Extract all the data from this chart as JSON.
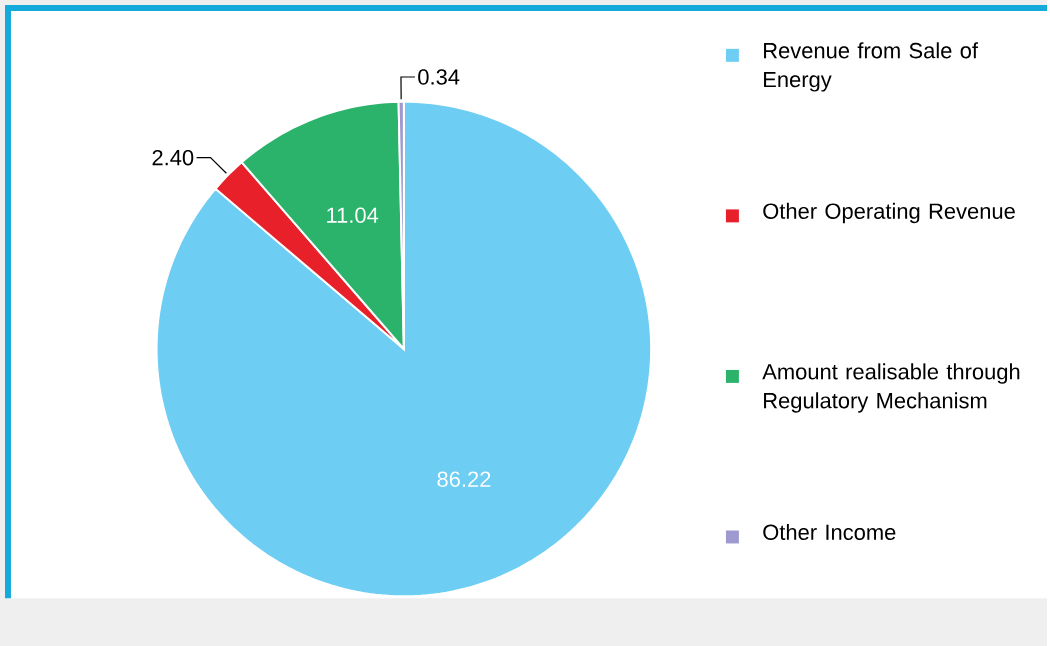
{
  "chart_data": {
    "type": "pie",
    "categories": [
      "Revenue from Sale of Energy",
      "Other Operating Revenue",
      "Amount realisable through Regulatory Mechanism",
      "Other Income"
    ],
    "values": [
      86.22,
      2.4,
      11.04,
      0.34
    ],
    "colors": [
      "#6dcdf2",
      "#e8202a",
      "#2bb36b",
      "#9e9ad0"
    ],
    "value_labels": [
      "86.22",
      "2.40",
      "11.04",
      "0.34"
    ],
    "legend": "right"
  }
}
